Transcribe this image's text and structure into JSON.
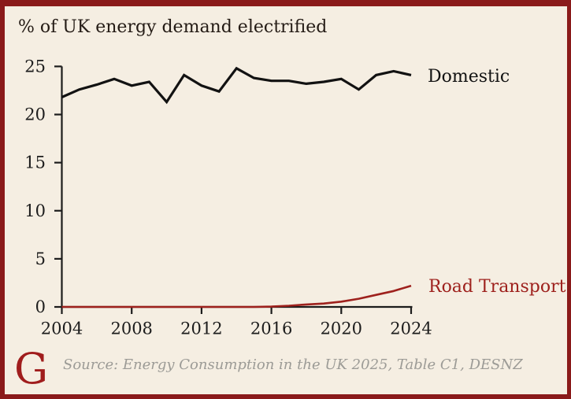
{
  "title": "% of UK energy demand electrified",
  "labels": {
    "domestic": "Domestic",
    "road_transport": "Road Transport"
  },
  "footer": {
    "logo": "G",
    "source": "Source: Energy Consumption in the UK 2025, Table C1, DESNZ"
  },
  "colors": {
    "background": "#f5eee2",
    "frame": "#8a1a1a",
    "domestic_line": "#121212",
    "road_line": "#9e211d",
    "axis": "#1c1c1c",
    "source_text": "#9c9b96",
    "logo": "#a01d1d"
  },
  "chart_data": {
    "type": "line",
    "title": "% of UK energy demand electrified",
    "xlabel": "",
    "ylabel": "",
    "xlim": [
      2004,
      2024
    ],
    "ylim": [
      0,
      25
    ],
    "x_ticks": [
      2004,
      2008,
      2012,
      2016,
      2020,
      2024
    ],
    "y_ticks": [
      0,
      5,
      10,
      15,
      20,
      25
    ],
    "grid": false,
    "legend": "inline labels at right end of lines",
    "x": [
      2004,
      2005,
      2006,
      2007,
      2008,
      2009,
      2010,
      2011,
      2012,
      2013,
      2014,
      2015,
      2016,
      2017,
      2018,
      2019,
      2020,
      2021,
      2022,
      2023,
      2024
    ],
    "series": [
      {
        "name": "Domestic",
        "color": "#121212",
        "values": [
          21.8,
          22.6,
          23.1,
          23.7,
          23.0,
          23.4,
          21.3,
          24.1,
          23.0,
          22.4,
          24.8,
          23.8,
          23.5,
          23.5,
          23.2,
          23.4,
          23.7,
          22.6,
          24.1,
          24.5,
          24.1
        ]
      },
      {
        "name": "Road Transport",
        "color": "#9e211d",
        "values": [
          0,
          0,
          0,
          0,
          0,
          0,
          0,
          0,
          0,
          0,
          0,
          0,
          0.03,
          0.12,
          0.25,
          0.35,
          0.55,
          0.85,
          1.25,
          1.65,
          2.2
        ]
      }
    ]
  }
}
